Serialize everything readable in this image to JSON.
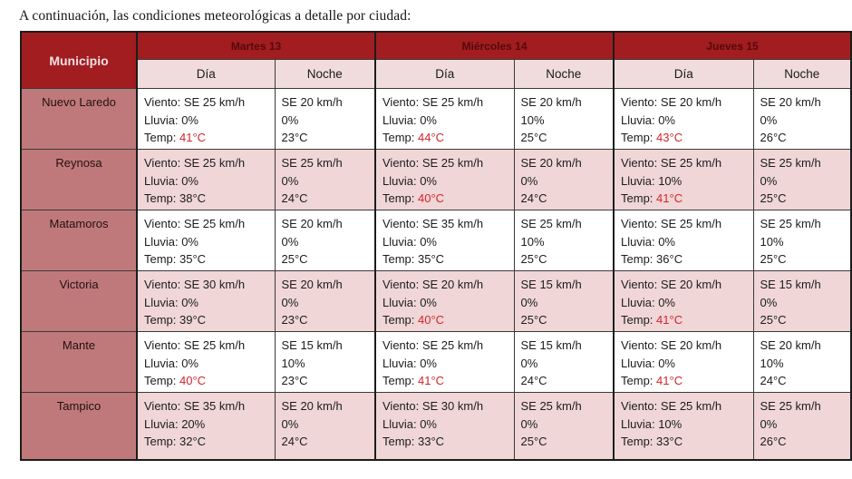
{
  "page": {
    "intro": "A continuación, las condiciones meteorológicas a detalle por ciudad:"
  },
  "colors": {
    "header_dark_red": "#a11d20",
    "day_band_text": "#55090c",
    "municipio_cell_rose": "#c0797b",
    "subheader_pink": "#f1dcdd",
    "striped_row_pink": "#f0d6d7",
    "hot_temp_red": "#d2252b"
  },
  "table": {
    "corner_header": "Municipio",
    "day_headers": [
      "Martes 13",
      "Miércoles 14",
      "Jueves 15"
    ],
    "sub_headers": {
      "day": "Día",
      "night": "Noche"
    },
    "labels": {
      "wind": "Viento:",
      "rain": "Lluvia:",
      "temp": "Temp:"
    },
    "rows": [
      {
        "municipio": "Nuevo Laredo",
        "striped": false,
        "cells": [
          {
            "type": "day",
            "wind": "SE 25 km/h",
            "rain": "0%",
            "temp": "41°C",
            "temp_hot": true
          },
          {
            "type": "night",
            "wind": "SE 20 km/h",
            "rain": "0%",
            "temp": "23°C",
            "temp_hot": false
          },
          {
            "type": "day",
            "wind": "SE 25 km/h",
            "rain": "0%",
            "temp": "44°C",
            "temp_hot": true
          },
          {
            "type": "night",
            "wind": "SE 20 km/h",
            "rain": "10%",
            "temp": "25°C",
            "temp_hot": false
          },
          {
            "type": "day",
            "wind": "SE 20 km/h",
            "rain": "0%",
            "temp": "43°C",
            "temp_hot": true
          },
          {
            "type": "night",
            "wind": "SE 20 km/h",
            "rain": "0%",
            "temp": "26°C",
            "temp_hot": false
          }
        ]
      },
      {
        "municipio": "Reynosa",
        "striped": true,
        "cells": [
          {
            "type": "day",
            "wind": "SE 25 km/h",
            "rain": "0%",
            "temp": "38°C",
            "temp_hot": false
          },
          {
            "type": "night",
            "wind": "SE 25 km/h",
            "rain": "0%",
            "temp": "24°C",
            "temp_hot": false
          },
          {
            "type": "day",
            "wind": "SE 25 km/h",
            "rain": "0%",
            "temp": "40°C",
            "temp_hot": true
          },
          {
            "type": "night",
            "wind": "SE 20 km/h",
            "rain": "0%",
            "temp": "24°C",
            "temp_hot": false
          },
          {
            "type": "day",
            "wind": "SE 25 km/h",
            "rain": "10%",
            "temp": "41°C",
            "temp_hot": true
          },
          {
            "type": "night",
            "wind": "SE 25 km/h",
            "rain": "0%",
            "temp": "25°C",
            "temp_hot": false
          }
        ]
      },
      {
        "municipio": "Matamoros",
        "striped": false,
        "cells": [
          {
            "type": "day",
            "wind": "SE 25 km/h",
            "rain": "0%",
            "temp": "35°C",
            "temp_hot": false
          },
          {
            "type": "night",
            "wind": "SE 20 km/h",
            "rain": "0%",
            "temp": "25°C",
            "temp_hot": false
          },
          {
            "type": "day",
            "wind": "SE 35 km/h",
            "rain": "0%",
            "temp": "35°C",
            "temp_hot": false
          },
          {
            "type": "night",
            "wind": "SE 25 km/h",
            "rain": "10%",
            "temp": "25°C",
            "temp_hot": false
          },
          {
            "type": "day",
            "wind": "SE 25 km/h",
            "rain": "0%",
            "temp": "36°C",
            "temp_hot": false
          },
          {
            "type": "night",
            "wind": "SE 25 km/h",
            "rain": "10%",
            "temp": "25°C",
            "temp_hot": false
          }
        ]
      },
      {
        "municipio": "Victoria",
        "striped": true,
        "cells": [
          {
            "type": "day",
            "wind": "SE 30 km/h",
            "rain": "0%",
            "temp": "39°C",
            "temp_hot": false
          },
          {
            "type": "night",
            "wind": "SE 20 km/h",
            "rain": "0%",
            "temp": "23°C",
            "temp_hot": false
          },
          {
            "type": "day",
            "wind": "SE 20 km/h",
            "rain": "0%",
            "temp": "40°C",
            "temp_hot": true
          },
          {
            "type": "night",
            "wind": "SE 15 km/h",
            "rain": "0%",
            "temp": "25°C",
            "temp_hot": false
          },
          {
            "type": "day",
            "wind": "SE 20 km/h",
            "rain": "0%",
            "temp": "41°C",
            "temp_hot": true
          },
          {
            "type": "night",
            "wind": "SE 15 km/h",
            "rain": "0%",
            "temp": "25°C",
            "temp_hot": false
          }
        ]
      },
      {
        "municipio": "Mante",
        "striped": false,
        "cells": [
          {
            "type": "day",
            "wind": "SE 25 km/h",
            "rain": "0%",
            "temp": "40°C",
            "temp_hot": true
          },
          {
            "type": "night",
            "wind": "SE 15 km/h",
            "rain": "10%",
            "temp": "23°C",
            "temp_hot": false
          },
          {
            "type": "day",
            "wind": "SE 25 km/h",
            "rain": "0%",
            "temp": "41°C",
            "temp_hot": true
          },
          {
            "type": "night",
            "wind": "SE 15 km/h",
            "rain": "0%",
            "temp": "24°C",
            "temp_hot": false
          },
          {
            "type": "day",
            "wind": "SE 20 km/h",
            "rain": "0%",
            "temp": "41°C",
            "temp_hot": true
          },
          {
            "type": "night",
            "wind": "SE 20 km/h",
            "rain": "10%",
            "temp": "24°C",
            "temp_hot": false
          }
        ]
      },
      {
        "municipio": "Tampico",
        "striped": true,
        "cells": [
          {
            "type": "day",
            "wind": "SE 35 km/h",
            "rain": "20%",
            "temp": "32°C",
            "temp_hot": false
          },
          {
            "type": "night",
            "wind": "SE 20 km/h",
            "rain": "0%",
            "temp": "24°C",
            "temp_hot": false
          },
          {
            "type": "day",
            "wind": "SE 30 km/h",
            "rain": "0%",
            "temp": "33°C",
            "temp_hot": false
          },
          {
            "type": "night",
            "wind": "SE 25 km/h",
            "rain": "0%",
            "temp": "25°C",
            "temp_hot": false
          },
          {
            "type": "day",
            "wind": "SE 25 km/h",
            "rain": "10%",
            "temp": "33°C",
            "temp_hot": false
          },
          {
            "type": "night",
            "wind": "SE 25 km/h",
            "rain": "0%",
            "temp": "26°C",
            "temp_hot": false
          }
        ]
      }
    ]
  }
}
